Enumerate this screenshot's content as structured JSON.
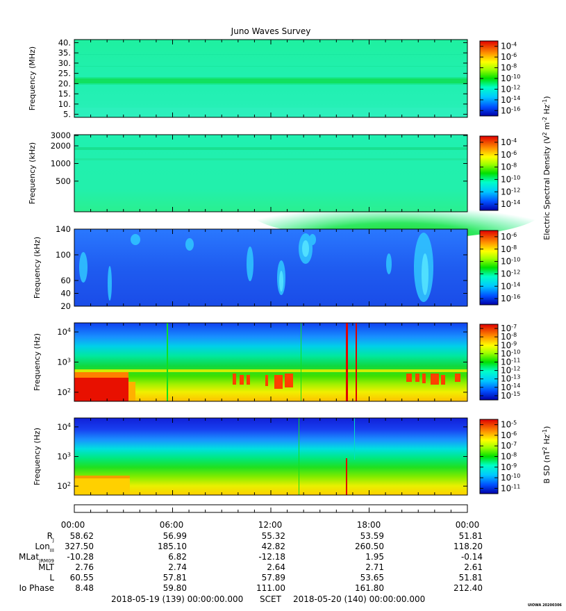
{
  "title": "Juno Waves Survey",
  "panels": [
    {
      "id": "hfwbr",
      "ylabel": "Frequency (MHz)",
      "yscale": "linear",
      "yticks": [
        "40.",
        "35.",
        "30.",
        "25.",
        "20.",
        "15.",
        "10.",
        "5."
      ],
      "ytick_values": [
        40,
        35,
        30,
        25,
        20,
        15,
        10,
        5
      ],
      "yrange": [
        3.5,
        41.5
      ],
      "cbar_ticks": [
        "10",
        "10",
        "10",
        "10",
        "10",
        "10",
        "10"
      ],
      "cbar_exps": [
        "-4",
        "-6",
        "-8",
        "-10",
        "-12",
        "-14",
        "-16"
      ],
      "cbar_label": ""
    },
    {
      "id": "hf",
      "ylabel": "Frequency (kHz)",
      "yscale": "log",
      "yticks": [
        "3000",
        "2000",
        "1000",
        "500"
      ],
      "ytick_values": [
        3000,
        2000,
        1000,
        500
      ],
      "yrange": [
        150,
        3100
      ],
      "cbar_ticks": [
        "10",
        "10",
        "10",
        "10",
        "10",
        "10"
      ],
      "cbar_exps": [
        "-4",
        "-6",
        "-8",
        "-10",
        "-12",
        "-14"
      ],
      "cbar_label": ""
    },
    {
      "id": "lfr",
      "ylabel": "Frequency (kHz)",
      "yscale": "linear",
      "yticks": [
        "140",
        "100",
        "60",
        "40",
        "20"
      ],
      "ytick_values": [
        140,
        100,
        60,
        40,
        20
      ],
      "yrange": [
        20,
        140
      ],
      "cbar_ticks": [
        "10",
        "10",
        "10",
        "10",
        "10",
        "10"
      ],
      "cbar_exps": [
        "-6",
        "-8",
        "-10",
        "-12",
        "-14",
        "-16"
      ],
      "cbar_label": "Electric Spectral Density (V² m⁻² Hz⁻¹)"
    },
    {
      "id": "lfrlo",
      "ylabel": "Frequency (Hz)",
      "yscale": "log",
      "yticks": [
        "10",
        "10",
        "10"
      ],
      "ytick_exps": [
        "4",
        "3",
        "2"
      ],
      "ytick_values": [
        10000,
        1000,
        100
      ],
      "yrange": [
        50,
        20000
      ],
      "cbar_ticks": [
        "10",
        "10",
        "10",
        "10",
        "10",
        "10",
        "10",
        "10",
        "10"
      ],
      "cbar_exps": [
        "-7",
        "-8",
        "-9",
        "-10",
        "-11",
        "-12",
        "-13",
        "-14",
        "-15"
      ],
      "cbar_label": ""
    },
    {
      "id": "bsd",
      "ylabel": "Frequency (Hz)",
      "yscale": "log",
      "yticks": [
        "10",
        "10",
        "10"
      ],
      "ytick_exps": [
        "4",
        "3",
        "2"
      ],
      "ytick_values": [
        10000,
        1000,
        100
      ],
      "yrange": [
        50,
        20000
      ],
      "cbar_ticks": [
        "10",
        "10",
        "10",
        "10",
        "10",
        "10",
        "10"
      ],
      "cbar_exps": [
        "-5",
        "-6",
        "-7",
        "-8",
        "-9",
        "-10",
        "-11"
      ],
      "cbar_label": "B SD (nT² Hz⁻¹)"
    }
  ],
  "chart_data": {
    "type": "heatmap",
    "title": "Juno Waves Survey",
    "x_start": "2018-05-19 (139) 00:00:00.000",
    "x_end": "2018-05-20 (140) 00:00:00.000",
    "xunit": "SCET",
    "x_ticks": [
      "00:00",
      "06:00",
      "12:00",
      "18:00",
      "00:00"
    ],
    "ephemeris": [
      {
        "label": "R",
        "sub": "J",
        "values": [
          "58.62",
          "56.99",
          "55.32",
          "53.59",
          "51.81"
        ]
      },
      {
        "label": "Lon",
        "sub": "III",
        "values": [
          "327.50",
          "185.10",
          "42.82",
          "260.50",
          "118.20"
        ]
      },
      {
        "label": "MLat",
        "sub": "JRM09",
        "values": [
          "-10.28",
          "6.82",
          "-12.18",
          "1.95",
          "-0.14"
        ]
      },
      {
        "label": "MLT",
        "sub": "",
        "values": [
          "2.76",
          "2.74",
          "2.64",
          "2.71",
          "2.61"
        ]
      },
      {
        "label": "L",
        "sub": "",
        "values": [
          "60.55",
          "57.81",
          "57.89",
          "53.65",
          "51.81"
        ]
      },
      {
        "label": "Io Phase",
        "sub": "",
        "values": [
          "8.48",
          "59.80",
          "111.00",
          "161.80",
          "212.40"
        ]
      }
    ]
  },
  "stamp": "UIOWA 20200306",
  "colors": {
    "background": "#ffffff",
    "axes": "#000000"
  }
}
